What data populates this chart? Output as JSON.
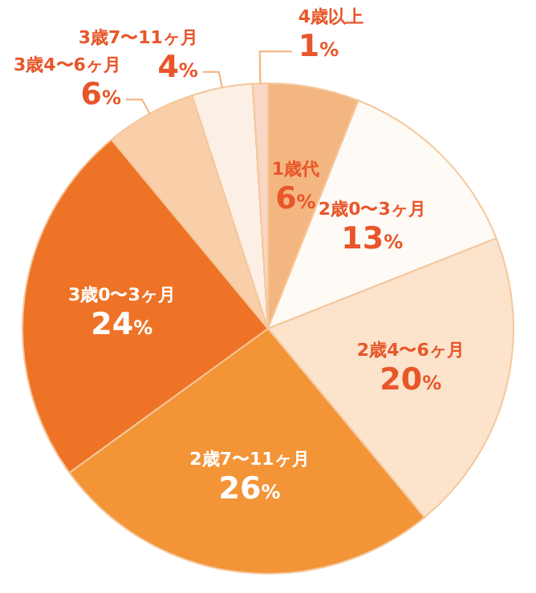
{
  "chart_data": {
    "type": "pie",
    "categories": [
      "1歳代",
      "2歳0〜3ヶ月",
      "2歳4〜6ヶ月",
      "2歳7〜11ヶ月",
      "3歳0〜3ヶ月",
      "3歳4〜6ヶ月",
      "3歳7〜11ヶ月",
      "4歳以上"
    ],
    "values": [
      6,
      13,
      20,
      26,
      24,
      6,
      4,
      1
    ],
    "value_labels": [
      "6%",
      "13%",
      "20%",
      "26%",
      "24%",
      "6%",
      "4%",
      "1%"
    ],
    "colors": [
      "#f4b680",
      "#fefaf5",
      "#fbe3cc",
      "#f39437",
      "#ee7326",
      "#f8cfa8",
      "#fcefe6",
      "#f8d7c4"
    ],
    "legend": false
  }
}
